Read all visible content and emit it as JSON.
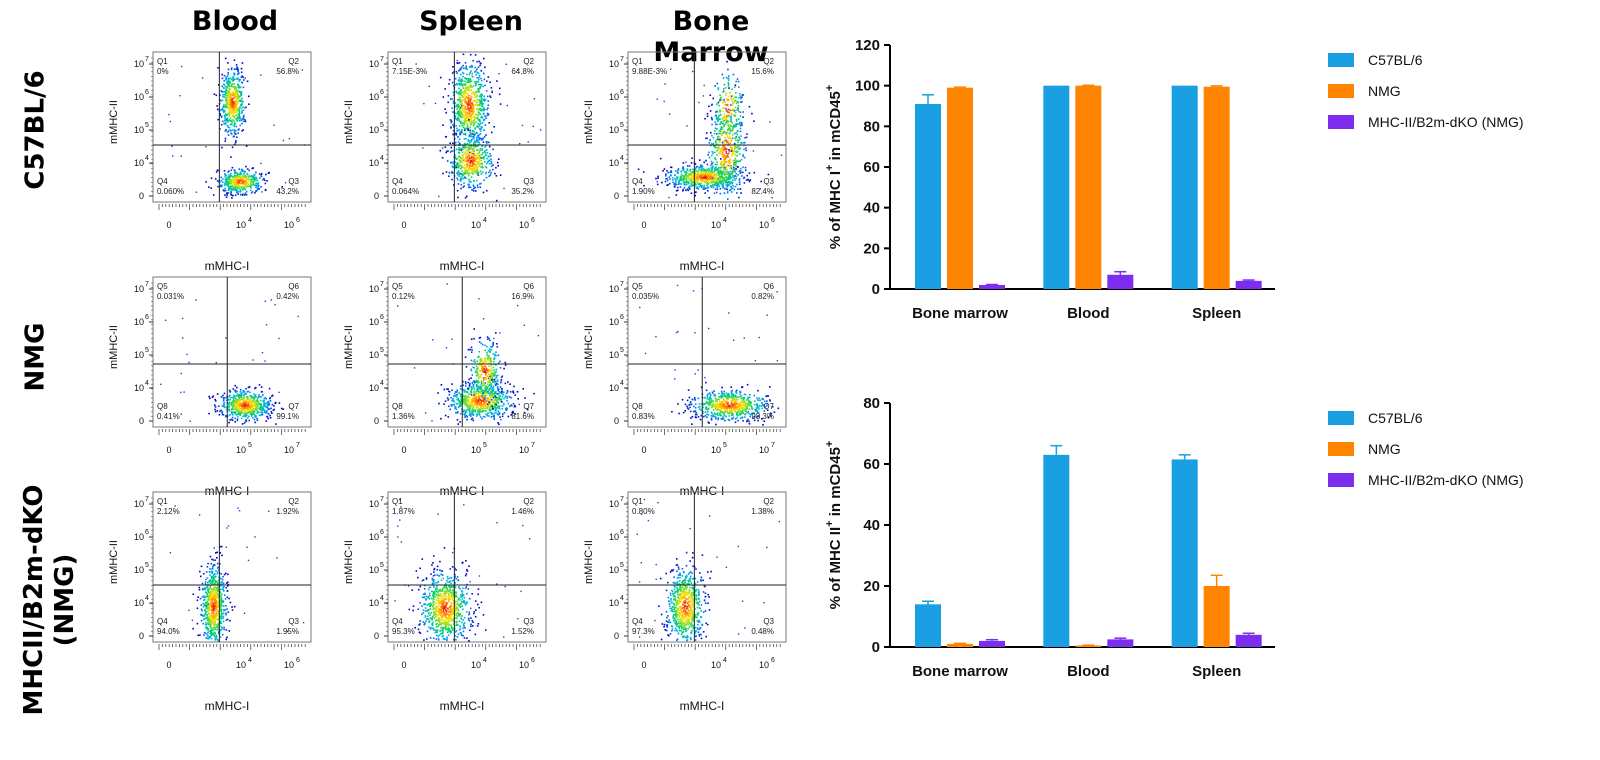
{
  "column_titles": [
    "Blood",
    "Spleen",
    "Bone Marrow"
  ],
  "row_titles": [
    {
      "lines": [
        "C57BL/6"
      ]
    },
    {
      "lines": [
        "NMG"
      ]
    },
    {
      "lines": [
        "MHCII/B2m-dKO",
        "(NMG)"
      ]
    }
  ],
  "flow_axis": {
    "y_label": "mMHC-II",
    "x_label": "mMHC-I",
    "y_ticks": [
      "10",
      "10",
      "10",
      "10",
      "0"
    ],
    "y_exps": [
      "7",
      "6",
      "5",
      "4",
      ""
    ],
    "x_ticks": [
      "0",
      "10",
      "10"
    ],
    "x_exps": [
      "",
      "4",
      "6"
    ],
    "x_ticks_alt": [
      "0",
      "10",
      "10"
    ],
    "x_exps_alt": [
      "",
      "5",
      "7"
    ]
  },
  "flow_panels": [
    {
      "id": "b6-blood",
      "alt": false,
      "q": [
        "Q1",
        "Q2",
        "Q4",
        "Q3"
      ],
      "v": [
        "0%",
        "56.8%",
        "0.060%",
        "43.2%"
      ],
      "blobs": [
        [
          0.5,
          0.33,
          0.04,
          0.11,
          520
        ],
        [
          0.55,
          0.86,
          0.07,
          0.04,
          420
        ]
      ]
    },
    {
      "id": "b6-spleen",
      "alt": false,
      "q": [
        "Q1",
        "Q2",
        "Q4",
        "Q3"
      ],
      "v": [
        "7.15E-3%",
        "64.8%",
        "0.064%",
        "35.2%"
      ],
      "blobs": [
        [
          0.51,
          0.35,
          0.06,
          0.14,
          700
        ],
        [
          0.52,
          0.72,
          0.07,
          0.09,
          500
        ]
      ]
    },
    {
      "id": "b6-bm",
      "alt": false,
      "q": [
        "Q1",
        "Q2",
        "Q4",
        "Q3"
      ],
      "v": [
        "9.88E-3%",
        "15.6%",
        "1.90%",
        "82.4%"
      ],
      "blobs": [
        [
          0.48,
          0.83,
          0.12,
          0.04,
          650
        ],
        [
          0.62,
          0.65,
          0.06,
          0.16,
          450
        ],
        [
          0.63,
          0.37,
          0.05,
          0.12,
          180
        ]
      ]
    },
    {
      "id": "nmg-blood",
      "alt": true,
      "q": [
        "Q5",
        "Q6",
        "Q8",
        "Q7"
      ],
      "v": [
        "0.031%",
        "0.42%",
        "0.41%",
        "99.1%"
      ],
      "blobs": [
        [
          0.58,
          0.85,
          0.08,
          0.05,
          620
        ]
      ]
    },
    {
      "id": "nmg-spleen",
      "alt": true,
      "q": [
        "Q5",
        "Q6",
        "Q8",
        "Q7"
      ],
      "v": [
        "0.12%",
        "16.9%",
        "1.36%",
        "81.6%"
      ],
      "blobs": [
        [
          0.58,
          0.82,
          0.1,
          0.06,
          700
        ],
        [
          0.61,
          0.62,
          0.05,
          0.1,
          300
        ]
      ]
    },
    {
      "id": "nmg-bm",
      "alt": true,
      "q": [
        "Q5",
        "Q6",
        "Q8",
        "Q7"
      ],
      "v": [
        "0.035%",
        "0.82%",
        "0.83%",
        "98.3%"
      ],
      "blobs": [
        [
          0.64,
          0.85,
          0.12,
          0.05,
          650
        ]
      ]
    },
    {
      "id": "dko-blood",
      "alt": false,
      "q": [
        "Q1",
        "Q2",
        "Q4",
        "Q3"
      ],
      "v": [
        "2.12%",
        "1.92%",
        "94.0%",
        "1.95%"
      ],
      "blobs": [
        [
          0.38,
          0.76,
          0.04,
          0.14,
          700
        ]
      ]
    },
    {
      "id": "dko-spleen",
      "alt": false,
      "q": [
        "Q1",
        "Q2",
        "Q4",
        "Q3"
      ],
      "v": [
        "1.87%",
        "1.46%",
        "95.3%",
        "1.52%"
      ],
      "blobs": [
        [
          0.36,
          0.77,
          0.08,
          0.12,
          800
        ]
      ]
    },
    {
      "id": "dko-bm",
      "alt": false,
      "q": [
        "Q1",
        "Q2",
        "Q4",
        "Q3"
      ],
      "v": [
        "0.80%",
        "1.38%",
        "97.3%",
        "0.48%"
      ],
      "blobs": [
        [
          0.36,
          0.76,
          0.06,
          0.13,
          700
        ]
      ]
    }
  ],
  "chart_data": [
    {
      "type": "bar",
      "title": "",
      "xlabel": "",
      "ylabel_parts": [
        "% of MHC I",
        "+",
        " in mCD45",
        "+"
      ],
      "categories": [
        "Bone marrow",
        "Blood",
        "Spleen"
      ],
      "ylim": [
        0,
        120
      ],
      "yticks": [
        0,
        20,
        40,
        60,
        80,
        100,
        120
      ],
      "series": [
        {
          "name": "C57BL/6",
          "color": "#1a9fe3",
          "values": [
            91,
            100,
            100
          ],
          "errors": [
            4.5,
            0,
            0
          ]
        },
        {
          "name": "NMG",
          "color": "#ff8500",
          "values": [
            99,
            100,
            99.5
          ],
          "errors": [
            0.3,
            0.2,
            0.4
          ]
        },
        {
          "name": "MHC-II/B2m-dKO (NMG)",
          "color": "#7d2df0",
          "values": [
            2,
            7,
            4
          ],
          "errors": [
            0.2,
            1.5,
            0.4
          ]
        }
      ]
    },
    {
      "type": "bar",
      "title": "",
      "xlabel": "",
      "ylabel_parts": [
        "% of MHC II",
        "+",
        " in mCD45",
        "+"
      ],
      "categories": [
        "Bone marrow",
        "Blood",
        "Spleen"
      ],
      "ylim": [
        0,
        80
      ],
      "yticks": [
        0,
        20,
        40,
        60,
        80
      ],
      "series": [
        {
          "name": "C57BL/6",
          "color": "#1a9fe3",
          "values": [
            14,
            63,
            61.5
          ],
          "errors": [
            1,
            3,
            1.5
          ]
        },
        {
          "name": "NMG",
          "color": "#ff8500",
          "values": [
            1,
            0.5,
            20
          ],
          "errors": [
            0.2,
            0.1,
            3.5
          ]
        },
        {
          "name": "MHC-II/B2m-dKO (NMG)",
          "color": "#7d2df0",
          "values": [
            2,
            2.5,
            4
          ],
          "errors": [
            0.4,
            0.4,
            0.5
          ]
        }
      ]
    }
  ]
}
